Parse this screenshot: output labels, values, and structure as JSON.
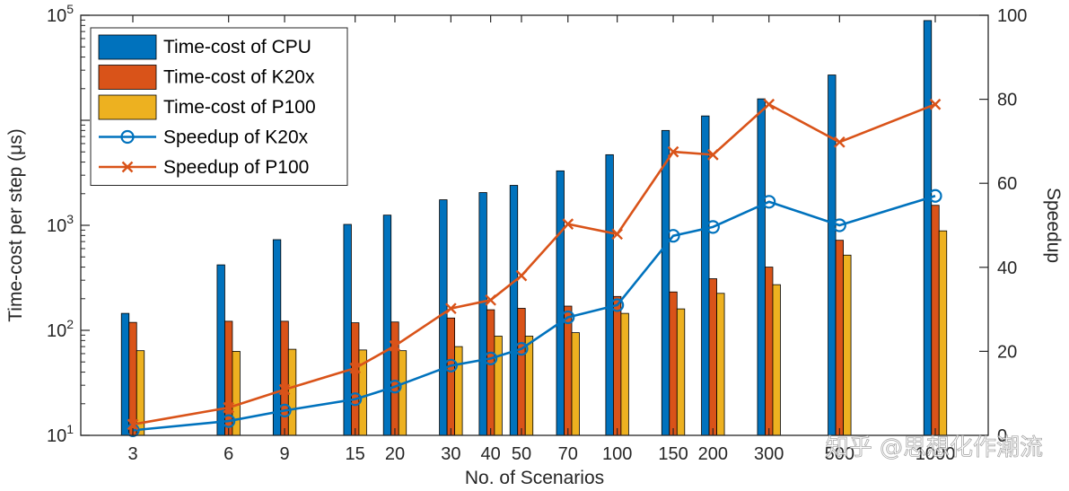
{
  "chart_data": {
    "type": "bar",
    "categories": [
      "3",
      "6",
      "9",
      "15",
      "20",
      "30",
      "40",
      "50",
      "70",
      "100",
      "150",
      "200",
      "300",
      "500",
      "1000"
    ],
    "xlabel": "No. of Scenarios",
    "ylabel_left": "Time-cost per step (μs)",
    "ylabel_right": "Speedup",
    "ylim_left": [
      10,
      100000
    ],
    "yscale_left": "log",
    "yticks_left": [
      {
        "base": "10",
        "exp": "1"
      },
      {
        "base": "10",
        "exp": "2"
      },
      {
        "base": "10",
        "exp": "3"
      },
      {
        "base": "10",
        "exp": "5"
      }
    ],
    "ylim_right": [
      0,
      100
    ],
    "yticks_right": [
      "0",
      "20",
      "40",
      "60",
      "80",
      "100"
    ],
    "grid": false,
    "legend_position": "top-left",
    "series": [
      {
        "name": "Time-cost of CPU",
        "kind": "bar",
        "axis": "left",
        "color": "#0072BD",
        "values": [
          145,
          420,
          730,
          1020,
          1250,
          1750,
          2050,
          2400,
          3300,
          4700,
          8000,
          11000,
          16000,
          27000,
          89000
        ]
      },
      {
        "name": "Time-cost of K20x",
        "kind": "bar",
        "axis": "left",
        "color": "#D95319",
        "values": [
          119,
          122,
          122,
          118,
          120,
          131,
          157,
          162,
          170,
          210,
          232,
          310,
          400,
          720,
          1550
        ]
      },
      {
        "name": "Time-cost of P100",
        "kind": "bar",
        "axis": "left",
        "color": "#EDB120",
        "values": [
          64,
          63,
          66,
          65,
          64,
          70,
          88,
          88,
          95,
          145,
          160,
          225,
          272,
          520,
          885
        ]
      },
      {
        "name": "Speedup of K20x",
        "kind": "line",
        "marker": "circle",
        "axis": "right",
        "color": "#0072BD",
        "values": [
          1.2,
          3.4,
          5.9,
          8.6,
          11.6,
          16.6,
          18.3,
          20.6,
          28.1,
          31.0,
          47.5,
          49.6,
          55.6,
          50.0,
          57.0
        ]
      },
      {
        "name": "Speedup of P100",
        "kind": "line",
        "marker": "x",
        "axis": "right",
        "color": "#D95319",
        "values": [
          2.6,
          6.6,
          10.9,
          16.0,
          21.3,
          30.2,
          32.2,
          38.0,
          50.3,
          47.9,
          67.5,
          66.8,
          78.8,
          69.8,
          78.8
        ]
      }
    ]
  },
  "watermark": "知乎 @思想化作潮流"
}
